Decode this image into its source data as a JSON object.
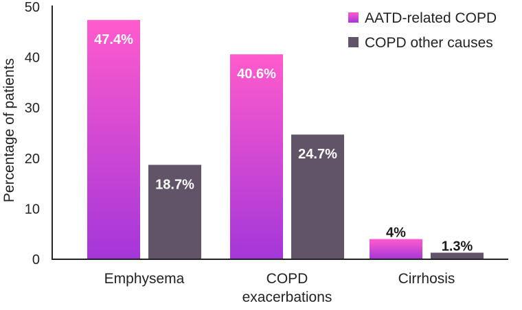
{
  "chart_data": {
    "type": "bar",
    "categories": [
      [
        "Emphysema"
      ],
      [
        "COPD",
        "exacerbations"
      ],
      [
        "Cirrhosis"
      ]
    ],
    "series": [
      {
        "name": "AATD-related COPD",
        "values": [
          47.4,
          40.6,
          4
        ],
        "labels": [
          "47.4%",
          "40.6%",
          "4%"
        ],
        "color_top": "#ff5bcd",
        "color_bottom": "#a436d9"
      },
      {
        "name": "COPD other causes",
        "values": [
          18.7,
          24.7,
          1.3
        ],
        "labels": [
          "18.7%",
          "24.7%",
          "1.3%"
        ],
        "color": "#625468"
      }
    ],
    "ylabel": "Percentage of patients",
    "ylim": [
      0,
      50
    ],
    "yticks": [
      0,
      10,
      20,
      30,
      40,
      50
    ],
    "grid": false,
    "legend": "top-right",
    "data_label_color_inside": "#ffffff",
    "data_label_color_outside": "#1a1a1a",
    "axis_color": "#222222"
  }
}
